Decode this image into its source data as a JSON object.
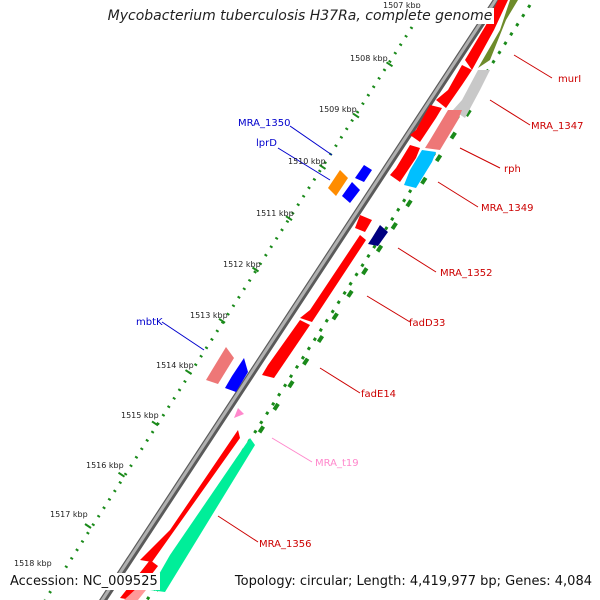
{
  "map": {
    "title": "Mycobacterium tuberculosis H37Ra, complete genome",
    "accession_text": "Accession: NC_009525",
    "topology_text": "Topology: circular; Length: 4,419,977 bp; Genes: 4,084",
    "ruler": [
      {
        "label": "1507 kbp"
      },
      {
        "label": "1508 kbp"
      },
      {
        "label": "1509 kbp"
      },
      {
        "label": "1510 kbp"
      },
      {
        "label": "1511 kbp"
      },
      {
        "label": "1512 kbp"
      },
      {
        "label": "1513 kbp"
      },
      {
        "label": "1514 kbp"
      },
      {
        "label": "1515 kbp"
      },
      {
        "label": "1516 kbp"
      },
      {
        "label": "1517 kbp"
      },
      {
        "label": "1518 kbp"
      }
    ],
    "gene_labels": [
      {
        "name": "murI",
        "color": "#cc0000"
      },
      {
        "name": "MRA_1347",
        "color": "#cc0000"
      },
      {
        "name": "rph",
        "color": "#cc0000"
      },
      {
        "name": "MRA_1349",
        "color": "#cc0000"
      },
      {
        "name": "MRA_1352",
        "color": "#cc0000"
      },
      {
        "name": "fadD33",
        "color": "#cc0000"
      },
      {
        "name": "fadE14",
        "color": "#cc0000"
      },
      {
        "name": "MRA_t19",
        "color": "#ff88cc"
      },
      {
        "name": "MRA_1356",
        "color": "#cc0000"
      },
      {
        "name": "MRA_1350",
        "color": "#0000cc"
      },
      {
        "name": "lprD",
        "color": "#0000cc"
      },
      {
        "name": "mbtK",
        "color": "#0000cc"
      }
    ],
    "feature_colors": {
      "cds_forward": "#ff0000",
      "cds_reverse": "#0000ff",
      "backbone": "#808080",
      "gc_skew": "#008000"
    }
  }
}
